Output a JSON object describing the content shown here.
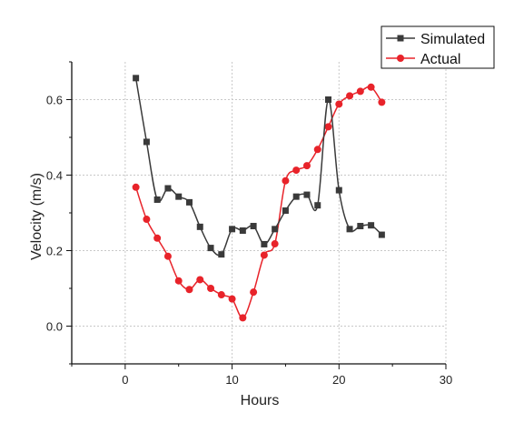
{
  "chart_data": {
    "type": "line",
    "xlabel": "Hours",
    "ylabel": "Velocity (m/s)",
    "xlim": [
      -5,
      30
    ],
    "ylim": [
      -0.1,
      0.7
    ],
    "xticks": [
      0,
      10,
      20,
      30
    ],
    "yticks": [
      0.0,
      0.2,
      0.4,
      0.6
    ],
    "grid": true,
    "legend_position": "top-right",
    "x": [
      1,
      2,
      3,
      4,
      5,
      6,
      7,
      8,
      9,
      10,
      11,
      12,
      13,
      14,
      15,
      16,
      17,
      18,
      19,
      20,
      21,
      22,
      23,
      24
    ],
    "series": [
      {
        "name": "Simulated",
        "color": "#3a3a3a",
        "marker": "square",
        "values": [
          0.657,
          0.488,
          0.335,
          0.365,
          0.343,
          0.328,
          0.263,
          0.207,
          0.19,
          0.257,
          0.253,
          0.265,
          0.217,
          0.257,
          0.306,
          0.343,
          0.348,
          0.32,
          0.6,
          0.36,
          0.257,
          0.265,
          0.267,
          0.242
        ]
      },
      {
        "name": "Actual",
        "color": "#e8232a",
        "marker": "circle",
        "values": [
          0.368,
          0.283,
          0.233,
          0.185,
          0.12,
          0.097,
          0.123,
          0.1,
          0.083,
          0.072,
          0.022,
          0.09,
          0.188,
          0.218,
          0.385,
          0.413,
          0.425,
          0.468,
          0.528,
          0.588,
          0.61,
          0.622,
          0.633,
          0.593
        ]
      }
    ]
  }
}
